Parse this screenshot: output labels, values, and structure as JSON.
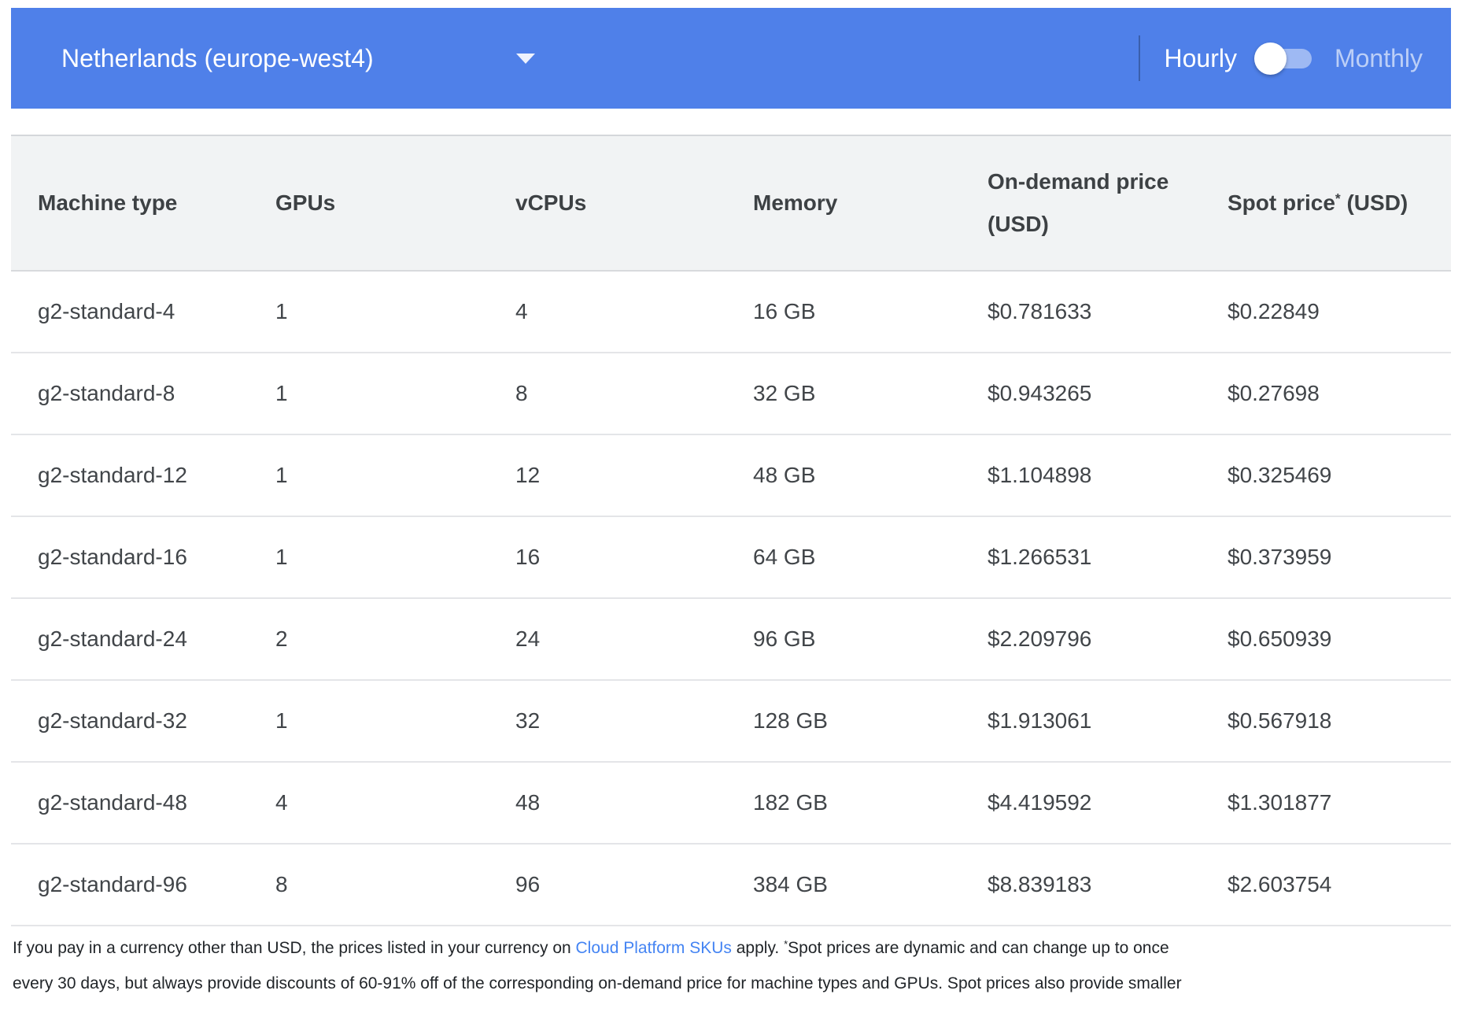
{
  "header": {
    "region_selector": {
      "value": "Netherlands (europe-west4)"
    },
    "toggle": {
      "left_label": "Hourly",
      "right_label": "Monthly",
      "selected": "Hourly"
    }
  },
  "table": {
    "columns": [
      {
        "label": "Machine type"
      },
      {
        "label": "GPUs"
      },
      {
        "label": "vCPUs"
      },
      {
        "label": "Memory"
      },
      {
        "label": "On-demand price (USD)"
      },
      {
        "label_pre": "Spot price",
        "label_sup": "*",
        "label_post": " (USD)"
      }
    ],
    "rows": [
      [
        "g2-standard-4",
        "1",
        "4",
        "16 GB",
        "$0.781633",
        "$0.22849"
      ],
      [
        "g2-standard-8",
        "1",
        "8",
        "32 GB",
        "$0.943265",
        "$0.27698"
      ],
      [
        "g2-standard-12",
        "1",
        "12",
        "48 GB",
        "$1.104898",
        "$0.325469"
      ],
      [
        "g2-standard-16",
        "1",
        "16",
        "64 GB",
        "$1.266531",
        "$0.373959"
      ],
      [
        "g2-standard-24",
        "2",
        "24",
        "96 GB",
        "$2.209796",
        "$0.650939"
      ],
      [
        "g2-standard-32",
        "1",
        "32",
        "128 GB",
        "$1.913061",
        "$0.567918"
      ],
      [
        "g2-standard-48",
        "4",
        "48",
        "182 GB",
        "$4.419592",
        "$1.301877"
      ],
      [
        "g2-standard-96",
        "8",
        "96",
        "384 GB",
        "$8.839183",
        "$2.603754"
      ]
    ]
  },
  "footer": {
    "line1_pre": "If you pay in a currency other than USD, the prices listed in your currency on ",
    "line1_link": "Cloud Platform SKUs",
    "line1_mid": " apply. ",
    "line1_sup": "*",
    "line1_post": "Spot prices are dynamic and can change up to once",
    "line2": "every 30 days, but always provide discounts of 60-91% off of the corresponding on-demand price for machine types and GPUs. Spot prices also provide smaller"
  },
  "colors": {
    "toolbar_blue": "#4f80e9",
    "link_blue": "#4484f3",
    "header_gray": "#f1f3f4"
  }
}
